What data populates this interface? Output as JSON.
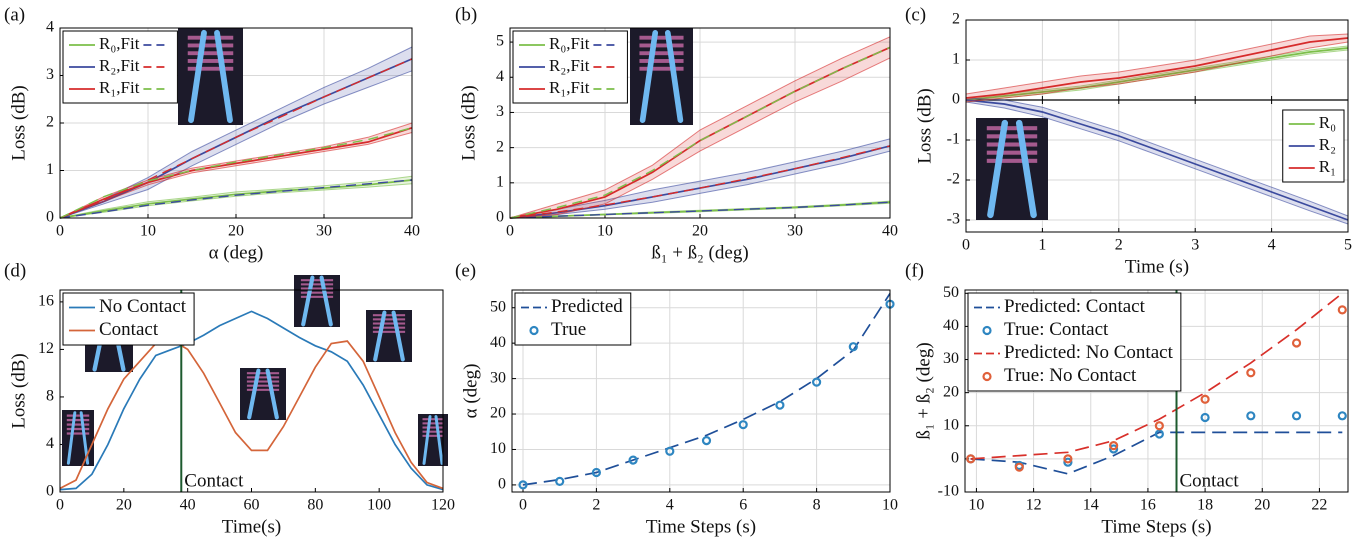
{
  "chart_data": [
    {
      "type": "line",
      "label": "(a)",
      "xlabel": "α (deg)",
      "ylabel": "Loss (dB)",
      "xlim": [
        0,
        40
      ],
      "ylim": [
        0,
        4
      ],
      "xticks": [
        0,
        10,
        20,
        30,
        40
      ],
      "yticks": [
        0,
        1,
        2,
        3,
        4
      ],
      "grid": true,
      "legend": "upper left",
      "x": [
        0,
        5,
        10,
        15,
        20,
        25,
        30,
        35,
        40
      ],
      "series": [
        {
          "name": "R₀,Fit",
          "color": "#7cbf4a",
          "fit_color": "#3b4a9e",
          "values": [
            0,
            0.15,
            0.3,
            0.4,
            0.5,
            0.57,
            0.63,
            0.7,
            0.8
          ],
          "lower": [
            0,
            0.12,
            0.26,
            0.36,
            0.46,
            0.53,
            0.59,
            0.65,
            0.72
          ],
          "upper": [
            0,
            0.18,
            0.34,
            0.44,
            0.55,
            0.61,
            0.68,
            0.76,
            0.88
          ],
          "fit": [
            0,
            0.13,
            0.27,
            0.38,
            0.48,
            0.56,
            0.64,
            0.72,
            0.8
          ]
        },
        {
          "name": "R₂,Fit",
          "color": "#3b4a9e",
          "fit_color": "#d62b2b",
          "values": [
            0,
            0.35,
            0.75,
            1.25,
            1.7,
            2.15,
            2.55,
            2.95,
            3.35
          ],
          "lower": [
            0,
            0.3,
            0.6,
            1.1,
            1.55,
            2.0,
            2.4,
            2.75,
            3.1
          ],
          "upper": [
            0,
            0.4,
            0.85,
            1.4,
            1.85,
            2.3,
            2.75,
            3.15,
            3.6
          ],
          "fit": [
            0,
            0.38,
            0.8,
            1.25,
            1.7,
            2.12,
            2.55,
            2.95,
            3.35
          ]
        },
        {
          "name": "R₁,Fit",
          "color": "#d62b2b",
          "fit_color": "#7cbf4a",
          "values": [
            0,
            0.4,
            0.75,
            1.0,
            1.15,
            1.3,
            1.45,
            1.6,
            1.9
          ],
          "lower": [
            0,
            0.35,
            0.7,
            0.95,
            1.1,
            1.25,
            1.4,
            1.55,
            1.8
          ],
          "upper": [
            0,
            0.45,
            0.8,
            1.05,
            1.2,
            1.35,
            1.5,
            1.7,
            2.0
          ],
          "fit": [
            0,
            0.45,
            0.78,
            1.0,
            1.18,
            1.33,
            1.48,
            1.65,
            1.9
          ]
        }
      ]
    },
    {
      "type": "line",
      "label": "(b)",
      "xlabel": "ß₁ + ß₂ (deg)",
      "ylabel": "Loss (dB)",
      "xlim": [
        0,
        40
      ],
      "ylim": [
        0,
        5.4
      ],
      "xticks": [
        0,
        10,
        20,
        30,
        40
      ],
      "yticks": [
        0,
        1,
        2,
        3,
        4,
        5
      ],
      "grid": true,
      "legend": "upper left",
      "x": [
        0,
        5,
        10,
        15,
        20,
        25,
        30,
        35,
        40
      ],
      "series": [
        {
          "name": "R₀,Fit",
          "color": "#7cbf4a",
          "fit_color": "#3b4a9e",
          "values": [
            0,
            0.05,
            0.1,
            0.15,
            0.2,
            0.25,
            0.3,
            0.37,
            0.45
          ],
          "lower": [
            0,
            0.04,
            0.09,
            0.13,
            0.18,
            0.23,
            0.28,
            0.35,
            0.42
          ],
          "upper": [
            0,
            0.06,
            0.11,
            0.17,
            0.22,
            0.27,
            0.32,
            0.39,
            0.48
          ],
          "fit": [
            0,
            0.05,
            0.1,
            0.15,
            0.2,
            0.25,
            0.3,
            0.37,
            0.45
          ]
        },
        {
          "name": "R₂,Fit",
          "color": "#3b4a9e",
          "fit_color": "#d62b2b",
          "values": [
            0,
            0.15,
            0.35,
            0.6,
            0.85,
            1.1,
            1.4,
            1.7,
            2.05
          ],
          "lower": [
            0,
            0.1,
            0.25,
            0.45,
            0.7,
            0.95,
            1.25,
            1.55,
            1.9
          ],
          "upper": [
            0,
            0.25,
            0.5,
            0.8,
            1.05,
            1.3,
            1.6,
            1.9,
            2.25
          ],
          "fit": [
            0,
            0.17,
            0.37,
            0.6,
            0.85,
            1.12,
            1.4,
            1.72,
            2.05
          ]
        },
        {
          "name": "R₁,Fit",
          "color": "#d62b2b",
          "fit_color": "#7cbf4a",
          "values": [
            0,
            0.25,
            0.6,
            1.3,
            2.2,
            2.9,
            3.6,
            4.25,
            4.85
          ],
          "lower": [
            0,
            0.1,
            0.4,
            1.1,
            1.9,
            2.6,
            3.3,
            3.9,
            4.55
          ],
          "upper": [
            0,
            0.4,
            0.8,
            1.5,
            2.5,
            3.2,
            3.9,
            4.55,
            5.15
          ],
          "fit": [
            0,
            0.3,
            0.65,
            1.35,
            2.2,
            2.9,
            3.6,
            4.25,
            4.85
          ]
        }
      ]
    },
    {
      "type": "line",
      "label": "(c)",
      "xlabel": "Time (s)",
      "ylabel": "Loss (dB)",
      "xlim": [
        0,
        5
      ],
      "ylim": [
        -3.3,
        2
      ],
      "xticks": [
        0,
        1,
        2,
        3,
        4,
        5
      ],
      "yticks": [
        -3,
        -2,
        -1,
        0,
        1,
        2
      ],
      "grid": true,
      "legend": "center right",
      "zero_axis": true,
      "x": [
        0,
        0.5,
        1,
        1.5,
        2,
        2.5,
        3,
        3.5,
        4,
        4.5,
        5
      ],
      "series": [
        {
          "name": "R₀",
          "color": "#7cbf4a",
          "values": [
            0,
            0.1,
            0.2,
            0.3,
            0.45,
            0.6,
            0.75,
            0.9,
            1.05,
            1.2,
            1.3
          ],
          "lower": [
            -0.05,
            0.05,
            0.15,
            0.25,
            0.4,
            0.55,
            0.7,
            0.85,
            1.0,
            1.15,
            1.25
          ],
          "upper": [
            0.05,
            0.15,
            0.25,
            0.35,
            0.5,
            0.65,
            0.8,
            0.95,
            1.1,
            1.25,
            1.35
          ]
        },
        {
          "name": "R₂",
          "color": "#3b4a9e",
          "values": [
            0,
            -0.1,
            -0.3,
            -0.6,
            -0.9,
            -1.25,
            -1.6,
            -1.95,
            -2.3,
            -2.65,
            -3.0
          ],
          "lower": [
            -0.05,
            -0.2,
            -0.42,
            -0.72,
            -1.02,
            -1.37,
            -1.72,
            -2.07,
            -2.42,
            -2.77,
            -3.1
          ],
          "upper": [
            0.05,
            0,
            -0.18,
            -0.48,
            -0.78,
            -1.13,
            -1.48,
            -1.83,
            -2.18,
            -2.53,
            -2.9
          ]
        },
        {
          "name": "R₁",
          "color": "#d62b2b",
          "values": [
            0.05,
            0.15,
            0.3,
            0.45,
            0.55,
            0.7,
            0.85,
            1.05,
            1.25,
            1.45,
            1.55
          ],
          "lower": [
            -0.05,
            0.05,
            0.15,
            0.3,
            0.4,
            0.55,
            0.7,
            0.9,
            1.1,
            1.3,
            1.45
          ],
          "upper": [
            0.15,
            0.3,
            0.45,
            0.6,
            0.7,
            0.85,
            1.0,
            1.2,
            1.4,
            1.6,
            1.65
          ]
        }
      ]
    },
    {
      "type": "line",
      "label": "(d)",
      "xlabel": "Time(s)",
      "ylabel": "Loss (dB)",
      "xlim": [
        0,
        120
      ],
      "ylim": [
        0,
        17
      ],
      "xticks": [
        0,
        20,
        40,
        60,
        80,
        100,
        120
      ],
      "yticks": [
        0,
        4,
        8,
        12,
        16
      ],
      "grid": false,
      "legend": "upper left",
      "vline": {
        "x": 38,
        "label": "Contact",
        "color": "#1d5a2e"
      },
      "x": [
        0,
        5,
        10,
        15,
        20,
        25,
        30,
        35,
        40,
        45,
        50,
        55,
        60,
        65,
        70,
        75,
        80,
        85,
        90,
        95,
        100,
        105,
        110,
        115,
        120
      ],
      "series": [
        {
          "name": "No Contact",
          "color": "#2a7ab8",
          "values": [
            0.2,
            0.3,
            1.5,
            4,
            7,
            9.5,
            11.5,
            12,
            12.5,
            13.2,
            14,
            14.6,
            15.2,
            14.6,
            13.8,
            13,
            12.3,
            11.8,
            11,
            9,
            6.5,
            4,
            2,
            0.6,
            0.2
          ]
        },
        {
          "name": "Contact",
          "color": "#d4653a",
          "values": [
            0.3,
            1,
            4,
            7,
            9.5,
            11,
            12.5,
            12.8,
            12,
            10,
            7.5,
            5,
            3.5,
            3.5,
            5.5,
            8,
            10.5,
            12.5,
            12.7,
            11,
            8,
            5,
            2.5,
            0.8,
            0.3
          ]
        }
      ]
    },
    {
      "type": "line",
      "label": "(e)",
      "xlabel": "Time Steps (s)",
      "ylabel": "α (deg)",
      "xlim": [
        -0.3,
        10
      ],
      "ylim": [
        -2,
        55
      ],
      "xticks": [
        0,
        2,
        4,
        6,
        8,
        10
      ],
      "yticks": [
        0,
        10,
        20,
        30,
        40,
        50
      ],
      "grid": true,
      "legend": "upper left",
      "x": [
        0,
        1,
        2,
        3,
        4,
        5,
        6,
        7,
        8,
        9,
        10
      ],
      "series": [
        {
          "name": "Predicted",
          "color": "#1f4f99",
          "style": "dashed",
          "values": [
            0,
            1.5,
            3.5,
            7,
            10.5,
            14,
            18.5,
            23.5,
            30,
            38,
            54
          ]
        },
        {
          "name": "True",
          "color": "#2e86c1",
          "style": "markers",
          "values": [
            0,
            1,
            3.5,
            7,
            9.5,
            12.5,
            17,
            22.5,
            29,
            39,
            51
          ]
        }
      ]
    },
    {
      "type": "line",
      "label": "(f)",
      "xlabel": "Time Steps (s)",
      "ylabel": "ß₁ + ß₂ (deg)",
      "xlim": [
        9.6,
        23
      ],
      "ylim": [
        -10,
        51
      ],
      "xticks": [
        10,
        12,
        14,
        16,
        18,
        20,
        22
      ],
      "yticks": [
        -10,
        0,
        10,
        20,
        30,
        40,
        50
      ],
      "grid": true,
      "legend": "upper left",
      "vline": {
        "x": 17,
        "label": "Contact",
        "color": "#1d5a2e"
      },
      "x": [
        9.8,
        11.5,
        13.2,
        14.8,
        16.4,
        18,
        19.6,
        21.2,
        22.8
      ],
      "series": [
        {
          "name": "Predicted: Contact",
          "color": "#1f4f99",
          "style": "dashed",
          "values": [
            0,
            -1,
            -4.5,
            1,
            8,
            8,
            8,
            8,
            8
          ]
        },
        {
          "name": "True: Contact",
          "color": "#2e86c1",
          "style": "markers",
          "values": [
            0,
            -2,
            -1,
            3,
            7.5,
            12.5,
            13,
            13,
            13
          ]
        },
        {
          "name": "Predicted: No Contact",
          "color": "#d8302a",
          "style": "dashed",
          "values": [
            0,
            1,
            2,
            5.5,
            12,
            20,
            29,
            39,
            50
          ]
        },
        {
          "name": "True: No Contact",
          "color": "#e0603a",
          "style": "markers",
          "values": [
            0,
            -2.5,
            0,
            4,
            10,
            18,
            26,
            35,
            45
          ]
        }
      ]
    }
  ]
}
